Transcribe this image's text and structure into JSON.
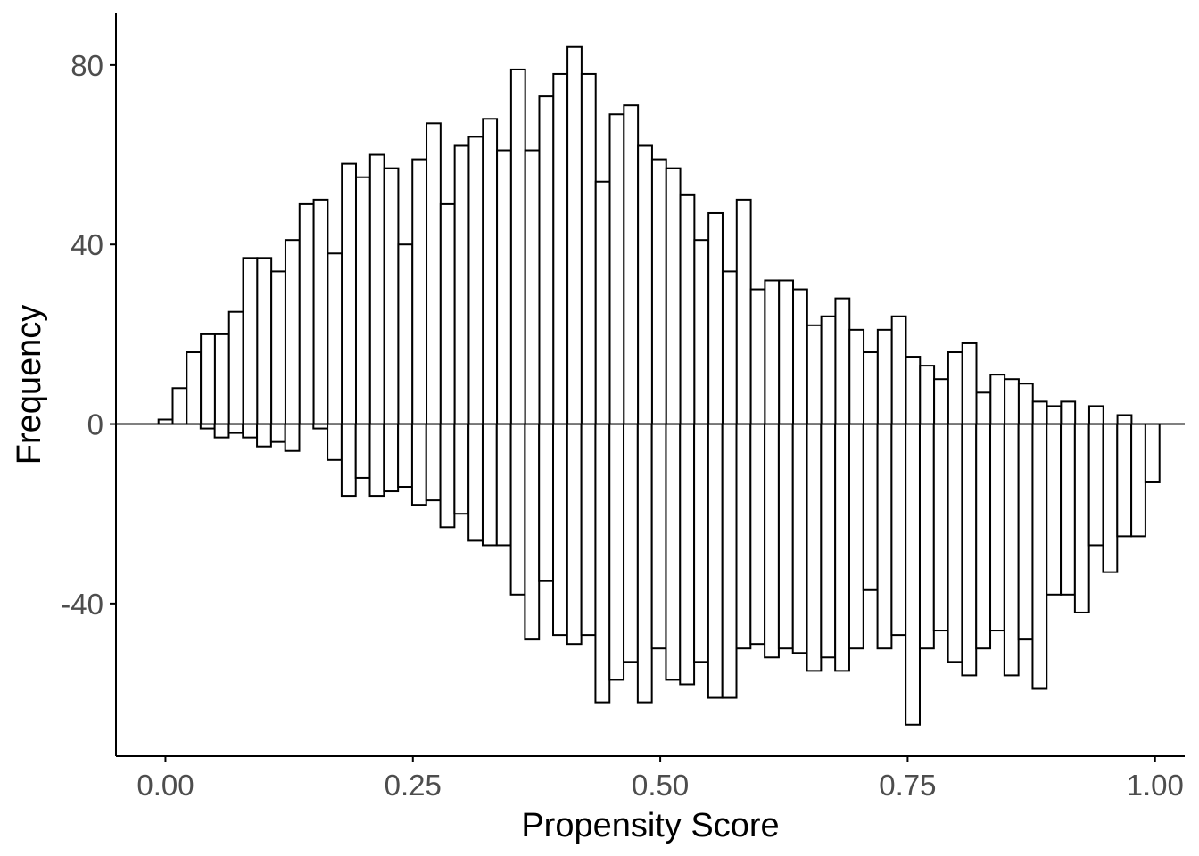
{
  "chart_data": {
    "type": "bar",
    "title": "",
    "xlabel": "Propensity Score",
    "ylabel": "Frequency",
    "xlim": [
      -0.05,
      1.03
    ],
    "ylim": [
      -74,
      91.5
    ],
    "x_ticks": [
      0.0,
      0.25,
      0.5,
      0.75,
      1.0
    ],
    "x_tick_labels": [
      "0.00",
      "0.25",
      "0.50",
      "0.75",
      "1.00"
    ],
    "y_ticks": [
      -40,
      0,
      40,
      80
    ],
    "y_tick_labels": [
      "-40",
      "0",
      "40",
      "80"
    ],
    "bin_width": 0.01425,
    "series": [
      {
        "start": -0.007,
        "values": [
          1,
          8,
          16,
          20,
          20,
          25,
          37,
          37,
          34,
          41,
          49,
          50,
          38,
          58,
          55,
          60,
          57,
          40,
          59,
          67,
          49,
          62,
          64,
          68,
          61,
          79,
          61,
          73,
          78,
          84,
          78,
          54,
          69,
          71,
          62,
          59,
          57,
          51,
          41,
          47,
          34,
          50,
          30,
          32,
          32,
          30,
          22,
          24,
          28,
          21,
          16,
          21,
          24,
          15,
          13,
          10,
          16,
          18,
          7,
          11,
          10,
          9,
          5,
          4,
          5,
          0,
          4,
          0,
          2,
          0
        ]
      },
      {
        "start": 0.007,
        "values": [
          0,
          0,
          -1,
          -3,
          -2,
          -3,
          -5,
          -4,
          -6,
          0,
          -1,
          -8,
          -16,
          -12,
          -16,
          -15,
          -14,
          -18,
          -17,
          -23,
          -20,
          -26,
          -27,
          -27,
          -38,
          -48,
          -35,
          -47,
          -49,
          -47,
          -62,
          -57,
          -53,
          -62,
          -50,
          -57,
          -58,
          -53,
          -61,
          -61,
          -50,
          -49,
          -52,
          -50,
          -51,
          -55,
          -52,
          -55,
          -50,
          -37,
          -50,
          -47,
          -67,
          -50,
          -46,
          -53,
          -56,
          -50,
          -46,
          -56,
          -48,
          -59,
          -38,
          -38,
          -42,
          -27,
          -33,
          -25,
          -25,
          -13
        ]
      }
    ]
  }
}
